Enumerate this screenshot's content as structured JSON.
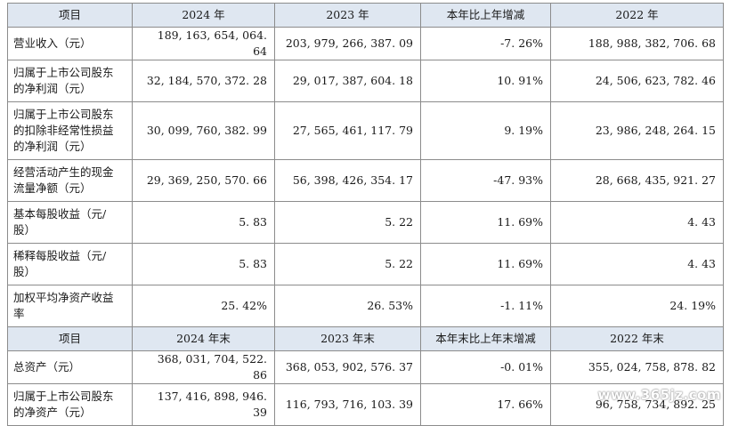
{
  "header1": [
    "项目",
    "2024 年",
    "2023 年",
    "本年比上年增减",
    "2022 年"
  ],
  "rows1": [
    {
      "label": [
        "营业收入（元）"
      ],
      "values": [
        "189, 163, 654, 064. 64",
        "203, 979, 266, 387. 09",
        "-7. 26%",
        "188, 988, 382, 706. 68"
      ]
    },
    {
      "label": [
        "归属于上市公司股东",
        "的净利润（元）"
      ],
      "values": [
        "32, 184, 570, 372. 28",
        "29, 017, 387, 604. 18",
        "10. 91%",
        "24, 506, 623, 782. 46"
      ]
    },
    {
      "label": [
        "归属于上市公司股东",
        "的扣除非经常性损益",
        "的净利润（元）"
      ],
      "values": [
        "30, 099, 760, 382. 99",
        "27, 565, 461, 117. 79",
        "9. 19%",
        "23, 986, 248, 264. 15"
      ]
    },
    {
      "label": [
        "经营活动产生的现金",
        "流量净额（元）"
      ],
      "values": [
        "29, 369, 250, 570. 66",
        "56, 398, 426, 354. 17",
        "-47. 93%",
        "28, 668, 435, 921. 27"
      ]
    },
    {
      "label": [
        "基本每股收益（元/",
        "股）"
      ],
      "values": [
        "5. 83",
        "5. 22",
        "11. 69%",
        "4. 43"
      ]
    },
    {
      "label": [
        "稀释每股收益（元/",
        "股）"
      ],
      "values": [
        "5. 83",
        "5. 22",
        "11. 69%",
        "4. 43"
      ]
    },
    {
      "label": [
        "加权平均净资产收益",
        "率"
      ],
      "values": [
        "25. 42%",
        "26. 53%",
        "-1. 11%",
        "24. 19%"
      ]
    }
  ],
  "header2": [
    "项目",
    "2024 年末",
    "2023 年末",
    "本年末比上年末增减",
    "2022 年末"
  ],
  "rows2": [
    {
      "label": [
        "总资产（元）"
      ],
      "values": [
        "368, 031, 704, 522. 86",
        "368, 053, 902, 576. 37",
        "-0. 01%",
        "355, 024, 758, 878. 82"
      ]
    },
    {
      "label": [
        "归属于上市公司股东",
        "的净资产（元）"
      ],
      "values": [
        "137, 416, 898, 946. 39",
        "116, 793, 716, 103. 39",
        "17. 66%",
        "96, 758, 734, 892. 25"
      ]
    }
  ],
  "watermark": "www.365jz.com"
}
